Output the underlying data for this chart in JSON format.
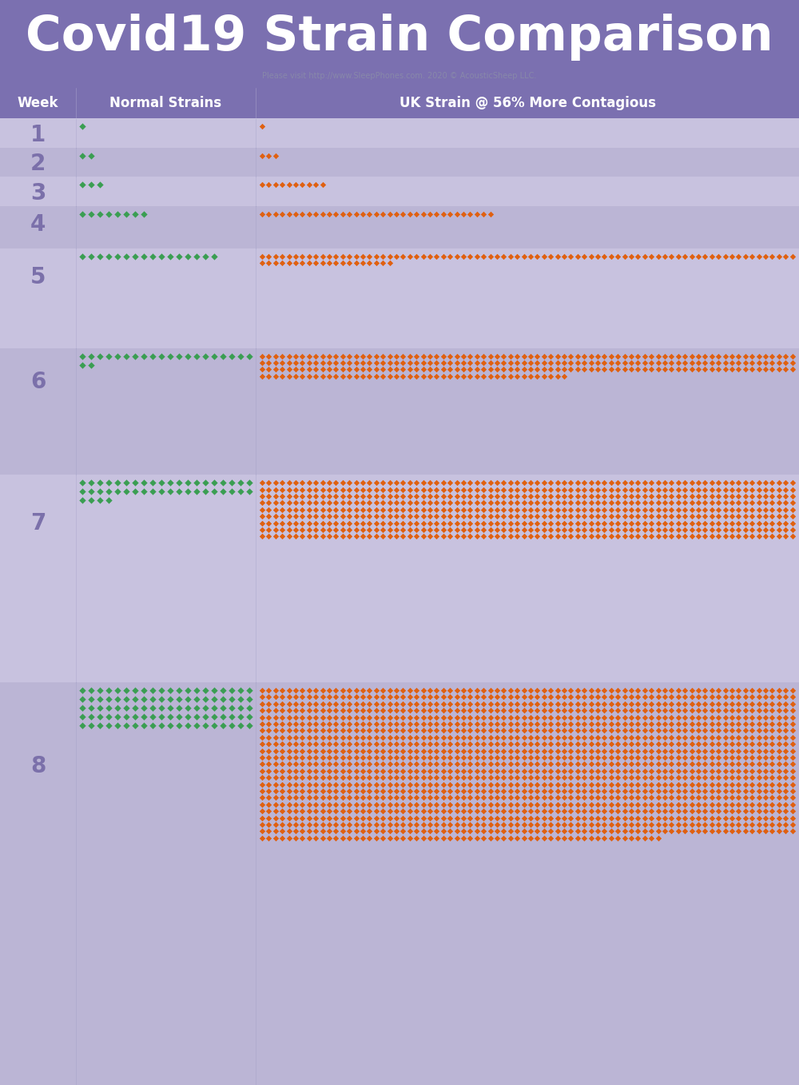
{
  "title": "Covid19 Strain Comparison",
  "subtitle": "Please visit http://www.SleepPhones.com. 2020 © AcousticSheep LLC.",
  "col_header_week": "Week",
  "col_header_normal": "Normal Strains",
  "col_header_uk": "UK Strain @ 56% More Contagious",
  "title_bg_color": "#7b70b0",
  "row_bg_light": "#c8c2df",
  "row_bg_dark": "#bbb5d5",
  "green_color": "#3a9e52",
  "orange_color": "#e06010",
  "weeks": [
    1,
    2,
    3,
    4,
    5,
    6,
    7,
    8
  ],
  "normal_counts": [
    1,
    2,
    3,
    8,
    16,
    22,
    44,
    100
  ],
  "uk_counts": [
    1,
    3,
    10,
    35,
    100,
    286,
    720,
    1820
  ],
  "title_fontsize": 44,
  "subtitle_fontsize": 7,
  "header_fontsize": 12,
  "week_fontsize": 20
}
